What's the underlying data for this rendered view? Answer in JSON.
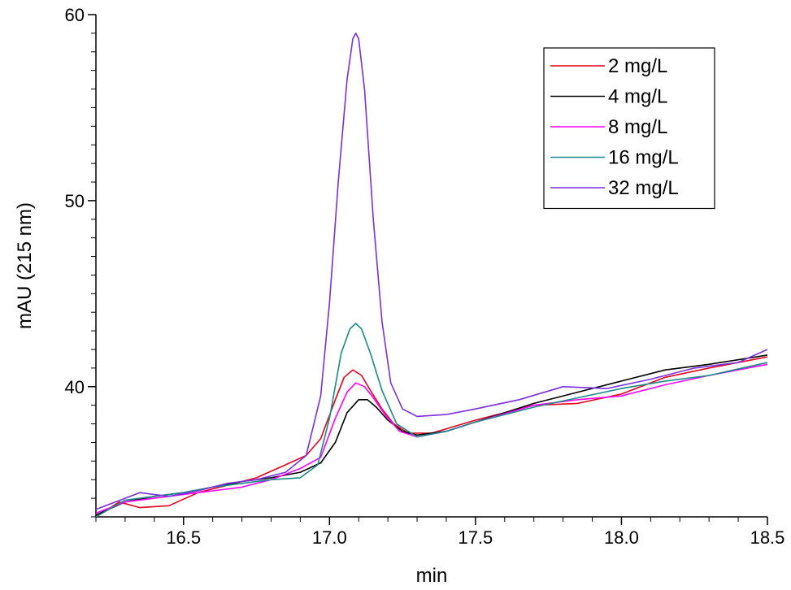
{
  "chart_data": {
    "type": "line",
    "title": "",
    "xlabel": "min",
    "ylabel": "mAU (215 nm)",
    "xlim": [
      16.2,
      18.5
    ],
    "ylim": [
      33,
      60
    ],
    "xticks": [
      16.5,
      17.0,
      17.5,
      18.0,
      18.5
    ],
    "xtick_labels": [
      "16.5",
      "17.0",
      "17.5",
      "18.0",
      "18.5"
    ],
    "yticks": [
      40,
      50,
      60
    ],
    "ytick_labels": [
      "40",
      "50",
      "60"
    ],
    "grid": false,
    "legend_position": "top-right",
    "series": [
      {
        "name": "2 mg/L",
        "color": "#e8001c",
        "x": [
          16.2,
          16.28,
          16.35,
          16.45,
          16.55,
          16.65,
          16.75,
          16.85,
          16.92,
          16.97,
          17.02,
          17.05,
          17.08,
          17.11,
          17.14,
          17.18,
          17.22,
          17.27,
          17.35,
          17.5,
          17.7,
          17.85,
          18.0,
          18.15,
          18.3,
          18.5
        ],
        "y": [
          33.0,
          33.8,
          33.5,
          33.6,
          34.3,
          34.7,
          35.1,
          35.8,
          36.3,
          37.2,
          39.3,
          40.5,
          40.9,
          40.6,
          39.8,
          38.8,
          38.0,
          37.5,
          37.5,
          38.2,
          39.0,
          39.1,
          39.6,
          40.5,
          41.0,
          41.6
        ]
      },
      {
        "name": "4 mg/L",
        "color": "#000000",
        "x": [
          16.2,
          16.3,
          16.4,
          16.5,
          16.6,
          16.7,
          16.8,
          16.9,
          16.97,
          17.02,
          17.06,
          17.1,
          17.13,
          17.16,
          17.2,
          17.25,
          17.3,
          17.4,
          17.5,
          17.7,
          17.85,
          18.0,
          18.15,
          18.3,
          18.5
        ],
        "y": [
          33.1,
          33.8,
          34.1,
          34.3,
          34.6,
          34.9,
          35.1,
          35.4,
          35.9,
          37.0,
          38.6,
          39.3,
          39.3,
          38.9,
          38.2,
          37.6,
          37.4,
          37.6,
          38.1,
          39.1,
          39.7,
          40.3,
          40.9,
          41.2,
          41.7
        ]
      },
      {
        "name": "8 mg/L",
        "color": "#ff00ff",
        "x": [
          16.2,
          16.3,
          16.4,
          16.5,
          16.6,
          16.7,
          16.8,
          16.9,
          16.97,
          17.02,
          17.06,
          17.09,
          17.12,
          17.15,
          17.19,
          17.24,
          17.3,
          17.4,
          17.5,
          17.7,
          17.85,
          18.0,
          18.15,
          18.3,
          18.5
        ],
        "y": [
          33.2,
          33.8,
          34.0,
          34.2,
          34.4,
          34.6,
          35.0,
          35.6,
          36.2,
          38.3,
          39.7,
          40.2,
          40.0,
          39.4,
          38.5,
          37.6,
          37.3,
          37.6,
          38.1,
          39.0,
          39.3,
          39.5,
          40.1,
          40.6,
          41.2
        ]
      },
      {
        "name": "16 mg/L",
        "color": "#1a8a8a",
        "x": [
          16.2,
          16.3,
          16.4,
          16.5,
          16.6,
          16.7,
          16.8,
          16.9,
          16.96,
          17.0,
          17.04,
          17.07,
          17.09,
          17.11,
          17.14,
          17.18,
          17.23,
          17.3,
          17.4,
          17.5,
          17.7,
          17.85,
          18.0,
          18.15,
          18.3,
          18.5
        ],
        "y": [
          33.0,
          33.9,
          34.1,
          34.3,
          34.6,
          34.8,
          35.0,
          35.1,
          35.8,
          38.3,
          41.8,
          43.1,
          43.4,
          43.1,
          41.8,
          39.8,
          38.0,
          37.3,
          37.6,
          38.1,
          38.9,
          39.4,
          39.9,
          40.3,
          40.6,
          41.3
        ]
      },
      {
        "name": "32 mg/L",
        "color": "#7a2fe0",
        "x": [
          16.2,
          16.3,
          16.35,
          16.45,
          16.55,
          16.65,
          16.75,
          16.85,
          16.92,
          16.97,
          17.0,
          17.03,
          17.06,
          17.08,
          17.09,
          17.1,
          17.12,
          17.15,
          17.18,
          17.21,
          17.25,
          17.3,
          17.4,
          17.5,
          17.65,
          17.8,
          17.95,
          18.1,
          18.25,
          18.4,
          18.5
        ],
        "y": [
          33.4,
          34.0,
          34.3,
          34.1,
          34.4,
          34.8,
          35.0,
          35.4,
          36.3,
          39.5,
          44.5,
          51.0,
          56.5,
          58.7,
          59.0,
          58.7,
          56.0,
          49.0,
          43.5,
          40.2,
          38.8,
          38.4,
          38.5,
          38.8,
          39.3,
          40.0,
          39.9,
          40.4,
          41.0,
          41.3,
          42.0
        ]
      }
    ]
  }
}
